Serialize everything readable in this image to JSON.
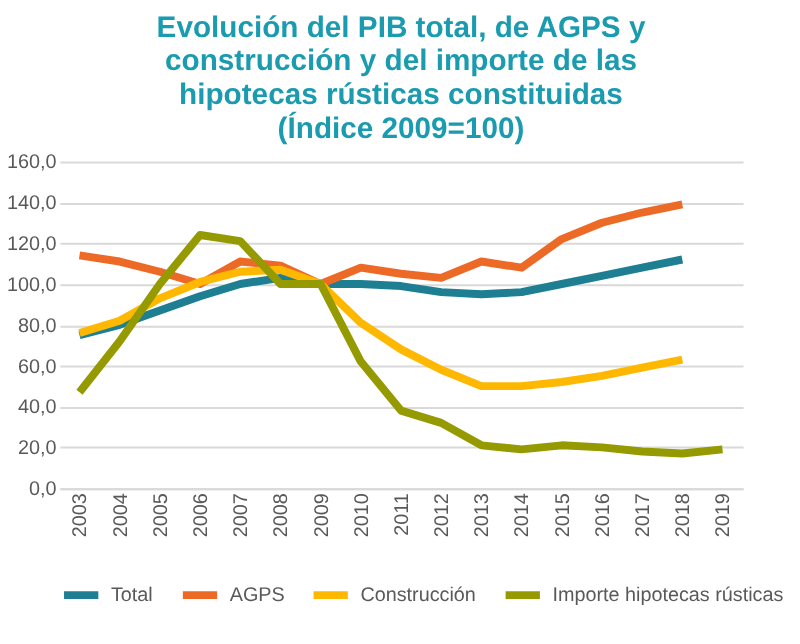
{
  "chart_data": {
    "type": "line",
    "title": "Evolución del PIB total, de AGPS y construcción y del importe de las hipotecas rústicas constituidas (Índice 2009=100)",
    "categories": [
      "2003",
      "2004",
      "2005",
      "2006",
      "2007",
      "2008",
      "2009",
      "2010",
      "2011",
      "2012",
      "2013",
      "2014",
      "2015",
      "2016",
      "2017",
      "2018",
      "2019"
    ],
    "series": [
      {
        "name": "Total",
        "color": "#1e7f93",
        "values": [
          75,
          80,
          87,
          94,
          100,
          103,
          100,
          100,
          99,
          96,
          95,
          96,
          100,
          104,
          108,
          112,
          null
        ]
      },
      {
        "name": "AGPS",
        "color": "#ed6a26",
        "values": [
          114,
          111,
          106,
          100,
          111,
          109,
          100,
          108,
          105,
          103,
          111,
          108,
          122,
          130,
          135,
          139,
          null
        ]
      },
      {
        "name": "Construcción",
        "color": "#ffb800",
        "values": [
          76,
          82,
          93,
          101,
          106,
          107,
          100,
          81,
          68,
          58,
          50,
          50,
          52,
          55,
          59,
          63,
          null
        ]
      },
      {
        "name": "Importe hipotecas rústicas",
        "color": "#949a00",
        "values": [
          47,
          72,
          100,
          124,
          121,
          100,
          100,
          62,
          38,
          32,
          21,
          19,
          21,
          20,
          18,
          17,
          19
        ]
      }
    ],
    "ylim": [
      0,
      160
    ],
    "yticks": [
      {
        "value": 0,
        "label": "0,0"
      },
      {
        "value": 20,
        "label": "20,0"
      },
      {
        "value": 40,
        "label": "40,0"
      },
      {
        "value": 60,
        "label": "60,0"
      },
      {
        "value": 80,
        "label": "80,0"
      },
      {
        "value": 100,
        "label": "100,0"
      },
      {
        "value": 120,
        "label": "120,0"
      },
      {
        "value": 140,
        "label": "140,0"
      },
      {
        "value": 160,
        "label": "160,0"
      }
    ],
    "grid": "y",
    "legend": "bottom",
    "marker": "none",
    "line_style": "solid"
  }
}
